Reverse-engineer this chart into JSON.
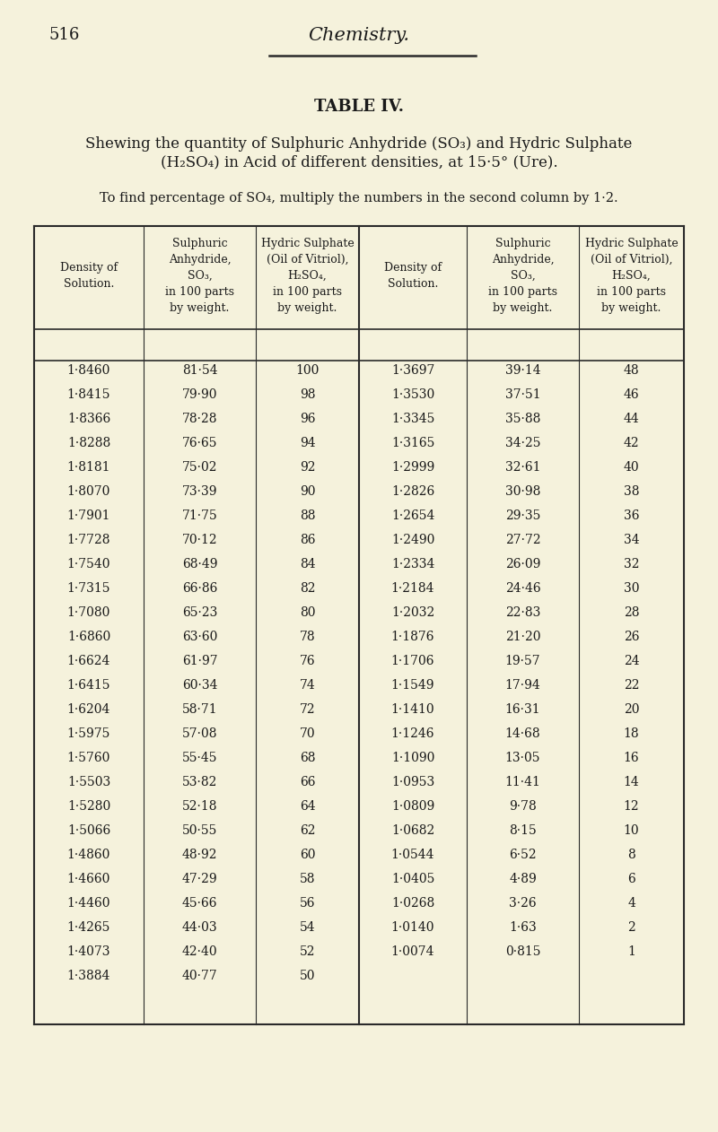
{
  "page_number": "516",
  "page_title": "Chemistry.",
  "table_title": "TABLE IV.",
  "subtitle_line1": "Shewing the quantity of Sulphuric Anhydride (SO₃) and Hydric Sulphate",
  "subtitle_line2": "(H₂SO₄) in Acid of different densities, at 15·5° (Ure).",
  "note": "To find percentage of SO₄, multiply the numbers in the second column by 1·2.",
  "col_headers": [
    [
      "Density of",
      "Solution."
    ],
    [
      "Sulphuric",
      "Anhydride,",
      "SO₃,",
      "in 100 parts",
      "by weight."
    ],
    [
      "Hydric Sulphate",
      "(Oil of Vitriol),",
      "H₂SO₄,",
      "in 100 parts",
      "by weight."
    ],
    [
      "Density of",
      "Solution."
    ],
    [
      "Sulphuric",
      "Anhydride,",
      "SO₃,",
      "in 100 parts",
      "by weight."
    ],
    [
      "Hydric Sulphate",
      "(Oil of Vitriol),",
      "H₂SO₄,",
      "in 100 parts",
      "by weight."
    ]
  ],
  "left_data": [
    [
      "1·8460",
      "81·54",
      "100"
    ],
    [
      "1·8415",
      "79·90",
      "98"
    ],
    [
      "1·8366",
      "78·28",
      "96"
    ],
    [
      "1·8288",
      "76·65",
      "94"
    ],
    [
      "1·8181",
      "75·02",
      "92"
    ],
    [
      "1·8070",
      "73·39",
      "90"
    ],
    [
      "1·7901",
      "71·75",
      "88"
    ],
    [
      "1·7728",
      "70·12",
      "86"
    ],
    [
      "1·7540",
      "68·49",
      "84"
    ],
    [
      "1·7315",
      "66·86",
      "82"
    ],
    [
      "1·7080",
      "65·23",
      "80"
    ],
    [
      "1·6860",
      "63·60",
      "78"
    ],
    [
      "1·6624",
      "61·97",
      "76"
    ],
    [
      "1·6415",
      "60·34",
      "74"
    ],
    [
      "1·6204",
      "58·71",
      "72"
    ],
    [
      "1·5975",
      "57·08",
      "70"
    ],
    [
      "1·5760",
      "55·45",
      "68"
    ],
    [
      "1·5503",
      "53·82",
      "66"
    ],
    [
      "1·5280",
      "52·18",
      "64"
    ],
    [
      "1·5066",
      "50·55",
      "62"
    ],
    [
      "1·4860",
      "48·92",
      "60"
    ],
    [
      "1·4660",
      "47·29",
      "58"
    ],
    [
      "1·4460",
      "45·66",
      "56"
    ],
    [
      "1·4265",
      "44·03",
      "54"
    ],
    [
      "1·4073",
      "42·40",
      "52"
    ],
    [
      "1·3884",
      "40·77",
      "50"
    ]
  ],
  "right_data": [
    [
      "1·3697",
      "39·14",
      "48"
    ],
    [
      "1·3530",
      "37·51",
      "46"
    ],
    [
      "1·3345",
      "35·88",
      "44"
    ],
    [
      "1·3165",
      "34·25",
      "42"
    ],
    [
      "1·2999",
      "32·61",
      "40"
    ],
    [
      "1·2826",
      "30·98",
      "38"
    ],
    [
      "1·2654",
      "29·35",
      "36"
    ],
    [
      "1·2490",
      "27·72",
      "34"
    ],
    [
      "1·2334",
      "26·09",
      "32"
    ],
    [
      "1·2184",
      "24·46",
      "30"
    ],
    [
      "1·2032",
      "22·83",
      "28"
    ],
    [
      "1·1876",
      "21·20",
      "26"
    ],
    [
      "1·1706",
      "19·57",
      "24"
    ],
    [
      "1·1549",
      "17·94",
      "22"
    ],
    [
      "1·1410",
      "16·31",
      "20"
    ],
    [
      "1·1246",
      "14·68",
      "18"
    ],
    [
      "1·1090",
      "13·05",
      "16"
    ],
    [
      "1·0953",
      "11·41",
      "14"
    ],
    [
      "1·0809",
      "9·78",
      "12"
    ],
    [
      "1·0682",
      "8·15",
      "10"
    ],
    [
      "1·0544",
      "6·52",
      "8"
    ],
    [
      "1·0405",
      "4·89",
      "6"
    ],
    [
      "1·0268",
      "3·26",
      "4"
    ],
    [
      "1·0140",
      "1·63",
      "2"
    ],
    [
      "1·0074",
      "0·815",
      "1"
    ],
    [
      "",
      "",
      ""
    ]
  ],
  "bg_color": "#f5f2dc",
  "text_color": "#1a1a1a",
  "line_color": "#2a2a2a"
}
